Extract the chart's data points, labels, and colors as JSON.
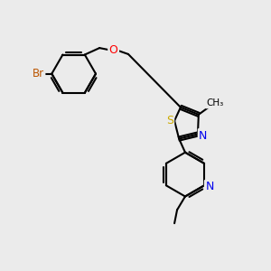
{
  "bg_color": "#ebebeb",
  "bond_color": "#000000",
  "bond_width": 1.5,
  "atom_colors": {
    "Br": "#bb5500",
    "O": "#ff0000",
    "S": "#ccaa00",
    "N": "#0000ee",
    "C": "#000000"
  },
  "figsize": [
    3.0,
    3.0
  ],
  "dpi": 100
}
